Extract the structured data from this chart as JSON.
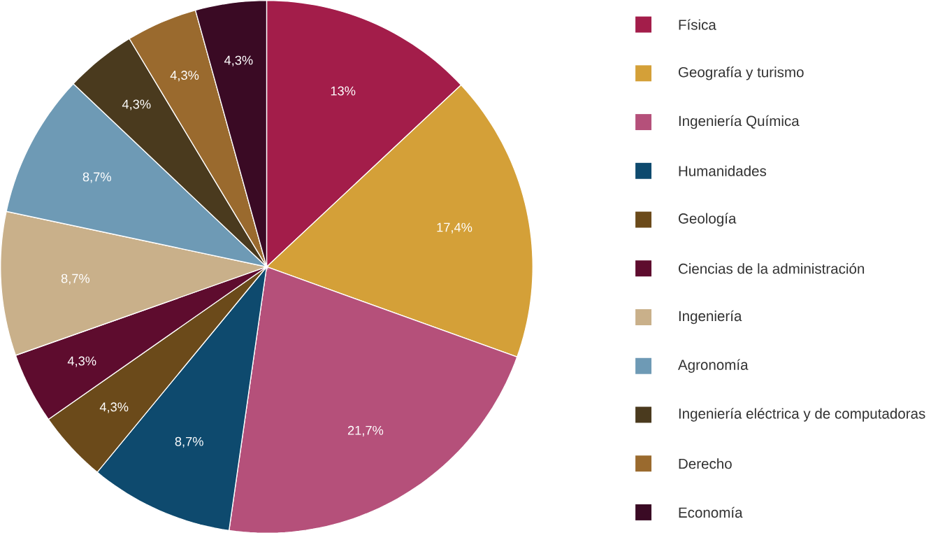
{
  "chart_data": {
    "type": "pie",
    "categories": [
      "Física",
      "Geografía y turismo",
      "Ingeniería Química",
      "Humanidades",
      "Geología",
      "Ciencias de la administración",
      "Ingeniería",
      "Agronomía",
      "Ingeniería eléctrica y de computadoras",
      "Derecho",
      "Economía"
    ],
    "values": [
      13,
      17.4,
      21.7,
      8.7,
      4.3,
      4.3,
      8.7,
      8.7,
      4.3,
      4.3,
      4.3
    ],
    "value_labels": [
      "13%",
      "17,4%",
      "21,7%",
      "8,7%",
      "4,3%",
      "4,3%",
      "8,7%",
      "8,7%",
      "4,3%",
      "4,3%",
      "4,3%"
    ],
    "colors": [
      "#a31d4a",
      "#d4a038",
      "#b5507a",
      "#0e4a6e",
      "#6b4a1a",
      "#5e0c2e",
      "#c9b08a",
      "#6e9ab5",
      "#4a3a1e",
      "#9a6a2e",
      "#3a0a24"
    ],
    "legend": "right"
  }
}
